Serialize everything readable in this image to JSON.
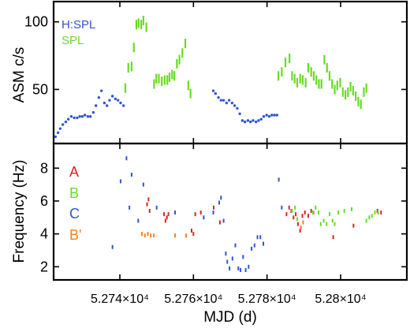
{
  "chart_data": [
    {
      "type": "scatter",
      "xlabel": "",
      "ylabel": "ASM c/s",
      "xlim": [
        52722,
        52818
      ],
      "ylim": [
        10,
        115
      ],
      "x_ticks": [
        52740,
        52760,
        52780,
        52800
      ],
      "y_ticks": [
        50,
        100
      ],
      "y_tick_labels": [
        "50",
        "100"
      ],
      "legend_position": "top-left",
      "colors": {
        "H:SPL": "#2f55d4",
        "SPL": "#66dd22"
      },
      "series": [
        {
          "name": "H:SPL",
          "marker": "dot",
          "points": [
            [
              52722.5,
              15
            ],
            [
              52723.2,
              18
            ],
            [
              52723.8,
              21
            ],
            [
              52724.5,
              24
            ],
            [
              52725.3,
              26
            ],
            [
              52726.0,
              28
            ],
            [
              52726.8,
              30
            ],
            [
              52727.6,
              29
            ],
            [
              52728.4,
              29
            ],
            [
              52729.1,
              30
            ],
            [
              52729.8,
              30
            ],
            [
              52730.5,
              31
            ],
            [
              52731.3,
              30
            ],
            [
              52732.0,
              30
            ],
            [
              52732.8,
              33
            ],
            [
              52733.5,
              38
            ],
            [
              52734.3,
              44
            ],
            [
              52735.0,
              49
            ],
            [
              52735.8,
              40
            ],
            [
              52736.5,
              38
            ],
            [
              52737.2,
              42
            ],
            [
              52738.0,
              45
            ],
            [
              52738.8,
              43
            ],
            [
              52739.5,
              42
            ],
            [
              52740.2,
              40
            ],
            [
              52741.0,
              38
            ],
            [
              52765.4,
              49
            ],
            [
              52766.0,
              47
            ],
            [
              52766.8,
              44
            ],
            [
              52767.5,
              42
            ],
            [
              52768.2,
              42
            ],
            [
              52769.0,
              40
            ],
            [
              52769.7,
              42
            ],
            [
              52770.5,
              40
            ],
            [
              52771.2,
              38
            ],
            [
              52771.9,
              36
            ],
            [
              52772.6,
              32
            ],
            [
              52773.3,
              27
            ],
            [
              52774.0,
              26
            ],
            [
              52774.8,
              27
            ],
            [
              52775.5,
              26
            ],
            [
              52776.2,
              27
            ],
            [
              52777.0,
              26
            ],
            [
              52777.7,
              27
            ],
            [
              52778.4,
              28
            ],
            [
              52779.1,
              30
            ],
            [
              52779.9,
              31
            ],
            [
              52780.6,
              30
            ],
            [
              52781.3,
              31
            ],
            [
              52782.0,
              31
            ],
            [
              52782.7,
              31
            ]
          ]
        },
        {
          "name": "SPL",
          "marker": "vbar",
          "points": [
            [
              52741.5,
              51
            ],
            [
              52742.3,
              66
            ],
            [
              52743.2,
              67
            ],
            [
              52743.8,
              81
            ],
            [
              52744.5,
              98
            ],
            [
              52745.1,
              99
            ],
            [
              52745.8,
              98
            ],
            [
              52746.4,
              101
            ],
            [
              52747.2,
              96
            ],
            [
              52749.3,
              54
            ],
            [
              52749.9,
              58
            ],
            [
              52750.6,
              58
            ],
            [
              52751.4,
              56
            ],
            [
              52752.2,
              57
            ],
            [
              52752.9,
              57
            ],
            [
              52753.5,
              59
            ],
            [
              52754.2,
              61
            ],
            [
              52754.8,
              60
            ],
            [
              52755.5,
              69
            ],
            [
              52756.2,
              72
            ],
            [
              52757.0,
              77
            ],
            [
              52757.8,
              84
            ],
            [
              52758.6,
              53
            ],
            [
              52759.2,
              47
            ],
            [
              52783.1,
              60
            ],
            [
              52784.0,
              63
            ],
            [
              52785.0,
              70
            ],
            [
              52786.1,
              73
            ],
            [
              52786.8,
              60
            ],
            [
              52787.5,
              58
            ],
            [
              52788.2,
              55
            ],
            [
              52789.0,
              58
            ],
            [
              52789.7,
              57
            ],
            [
              52790.5,
              55
            ],
            [
              52791.2,
              66
            ],
            [
              52792.0,
              63
            ],
            [
              52792.7,
              60
            ],
            [
              52793.4,
              57
            ],
            [
              52794.1,
              54
            ],
            [
              52794.8,
              54
            ],
            [
              52795.6,
              72
            ],
            [
              52796.3,
              66
            ],
            [
              52797.0,
              60
            ],
            [
              52797.7,
              54
            ],
            [
              52798.4,
              50
            ],
            [
              52799.1,
              53
            ],
            [
              52799.9,
              55
            ],
            [
              52800.6,
              48
            ],
            [
              52801.3,
              46
            ],
            [
              52802.0,
              48
            ],
            [
              52802.7,
              52
            ],
            [
              52803.4,
              49
            ],
            [
              52804.1,
              45
            ],
            [
              52804.8,
              41
            ],
            [
              52805.5,
              39
            ],
            [
              52806.3,
              48
            ],
            [
              52807.0,
              51
            ]
          ]
        }
      ]
    },
    {
      "type": "scatter",
      "xlabel": "MJD (d)",
      "ylabel": "Frequency (Hz)",
      "xlim": [
        52722,
        52818
      ],
      "ylim": [
        1.2,
        9.5
      ],
      "x_ticks": [
        52740,
        52760,
        52780,
        52800
      ],
      "x_tick_labels": [
        "5.274×10⁴",
        "5.276×10⁴",
        "5.278×10⁴",
        "5.28×10⁴"
      ],
      "y_ticks": [
        2,
        4,
        6,
        8
      ],
      "y_tick_labels": [
        "2",
        "4",
        "6",
        "8"
      ],
      "legend_position": "top-left",
      "colors": {
        "A": "#dd2222",
        "B": "#66dd22",
        "C": "#2f55d4",
        "B'": "#ff7f1a"
      },
      "series": [
        {
          "name": "A",
          "points": [
            [
              52747.4,
              5.8
            ],
            [
              52747.8,
              6.1
            ],
            [
              52748.1,
              5.4
            ],
            [
              52752.0,
              5.2
            ],
            [
              52752.4,
              4.8
            ],
            [
              52752.8,
              5.0
            ],
            [
              52753.2,
              5.2
            ],
            [
              52759.5,
              4.2
            ],
            [
              52760.0,
              4.0
            ],
            [
              52760.5,
              5.2
            ],
            [
              52762.0,
              5.3
            ],
            [
              52765.5,
              5.6
            ],
            [
              52767.2,
              4.7
            ],
            [
              52785.3,
              5.2
            ],
            [
              52786.0,
              5.6
            ],
            [
              52786.6,
              5.4
            ],
            [
              52787.2,
              5.0
            ],
            [
              52787.8,
              5.2
            ],
            [
              52788.4,
              4.6
            ],
            [
              52789.0,
              4.2
            ],
            [
              52789.6,
              5.1
            ],
            [
              52790.3,
              5.3
            ],
            [
              52791.2,
              5.1
            ],
            [
              52792.0,
              5.4
            ],
            [
              52792.6,
              5.3
            ],
            [
              52798.0,
              3.8
            ],
            [
              52803.5,
              4.5
            ],
            [
              52810.0,
              5.4
            ],
            [
              52811.0,
              5.3
            ]
          ]
        },
        {
          "name": "B",
          "points": [
            [
              52786.8,
              5.4
            ],
            [
              52787.6,
              5.6
            ],
            [
              52788.2,
              4.9
            ],
            [
              52792.5,
              5.3
            ],
            [
              52793.2,
              5.6
            ],
            [
              52794.0,
              5.3
            ],
            [
              52794.6,
              4.6
            ],
            [
              52795.4,
              4.8
            ],
            [
              52796.2,
              4.6
            ],
            [
              52797.0,
              5.2
            ],
            [
              52797.8,
              4.8
            ],
            [
              52798.4,
              4.6
            ],
            [
              52799.4,
              5.3
            ],
            [
              52801.0,
              5.4
            ],
            [
              52803.0,
              5.5
            ],
            [
              52807.0,
              4.8
            ],
            [
              52807.8,
              5.0
            ],
            [
              52808.5,
              5.1
            ],
            [
              52809.3,
              5.3
            ],
            [
              52810.2,
              5.3
            ]
          ]
        },
        {
          "name": "C",
          "points": [
            [
              52738.0,
              3.2
            ],
            [
              52740.2,
              7.2
            ],
            [
              52741.8,
              8.6
            ],
            [
              52742.6,
              5.6
            ],
            [
              52743.2,
              7.6
            ],
            [
              52745.0,
              4.8
            ],
            [
              52746.4,
              7.0
            ],
            [
              52750.0,
              5.6
            ],
            [
              52755.0,
              5.3
            ],
            [
              52762.8,
              5.0
            ],
            [
              52765.4,
              5.3
            ],
            [
              52767.0,
              5.9
            ],
            [
              52767.5,
              6.2
            ],
            [
              52768.2,
              4.8
            ],
            [
              52768.8,
              2.8
            ],
            [
              52769.2,
              2.3
            ],
            [
              52769.8,
              1.9
            ],
            [
              52770.6,
              2.5
            ],
            [
              52771.4,
              3.3
            ],
            [
              52772.2,
              1.9
            ],
            [
              52772.8,
              1.8
            ],
            [
              52773.5,
              2.6
            ],
            [
              52774.2,
              1.8
            ],
            [
              52775.0,
              2.0
            ],
            [
              52775.8,
              3.1
            ],
            [
              52776.6,
              3.3
            ],
            [
              52777.4,
              3.8
            ],
            [
              52778.2,
              3.8
            ],
            [
              52779.0,
              3.4
            ],
            [
              52783.2,
              7.3
            ],
            [
              52784.0,
              5.6
            ]
          ]
        },
        {
          "name": "B'",
          "points": [
            [
              52746.0,
              4.0
            ],
            [
              52746.8,
              3.9
            ],
            [
              52747.6,
              4.0
            ],
            [
              52748.4,
              3.9
            ],
            [
              52749.2,
              3.9
            ],
            [
              52755.0,
              3.9
            ],
            [
              52758.0,
              3.9
            ],
            [
              52789.2,
              4.4
            ],
            [
              52789.8,
              4.7
            ]
          ]
        }
      ]
    }
  ]
}
